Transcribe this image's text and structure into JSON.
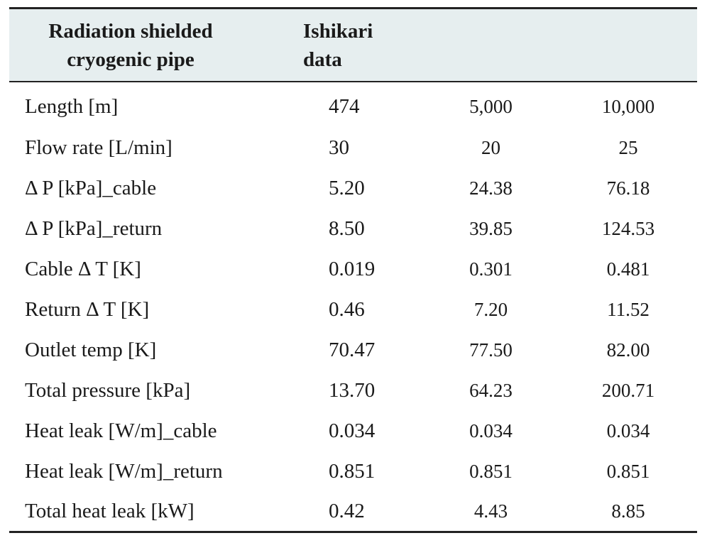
{
  "table": {
    "headers": [
      [
        "Radiation shielded",
        "cryogenic pipe"
      ],
      [
        "Ishikari",
        "data"
      ],
      [
        ""
      ],
      [
        ""
      ]
    ],
    "rows": [
      [
        "Length [m]",
        "474",
        "5,000",
        "10,000"
      ],
      [
        "Flow rate [L/min]",
        "30",
        "20",
        "25"
      ],
      [
        "Δ P [kPa]_cable",
        "5.20",
        "24.38",
        "76.18"
      ],
      [
        "Δ P [kPa]_return",
        "8.50",
        "39.85",
        "124.53"
      ],
      [
        "Cable Δ T [K]",
        "0.019",
        "0.301",
        "0.481"
      ],
      [
        "Return Δ T [K]",
        "0.46",
        "7.20",
        "11.52"
      ],
      [
        "Outlet temp [K]",
        "70.47",
        "77.50",
        "82.00"
      ],
      [
        "Total pressure [kPa]",
        "13.70",
        "64.23",
        "200.71"
      ],
      [
        "Heat leak [W/m]_cable",
        "0.034",
        "0.034",
        "0.034"
      ],
      [
        "Heat leak [W/m]_return",
        "0.851",
        "0.851",
        "0.851"
      ],
      [
        "Total heat leak [kW]",
        "0.42",
        "4.43",
        "8.85"
      ]
    ]
  }
}
